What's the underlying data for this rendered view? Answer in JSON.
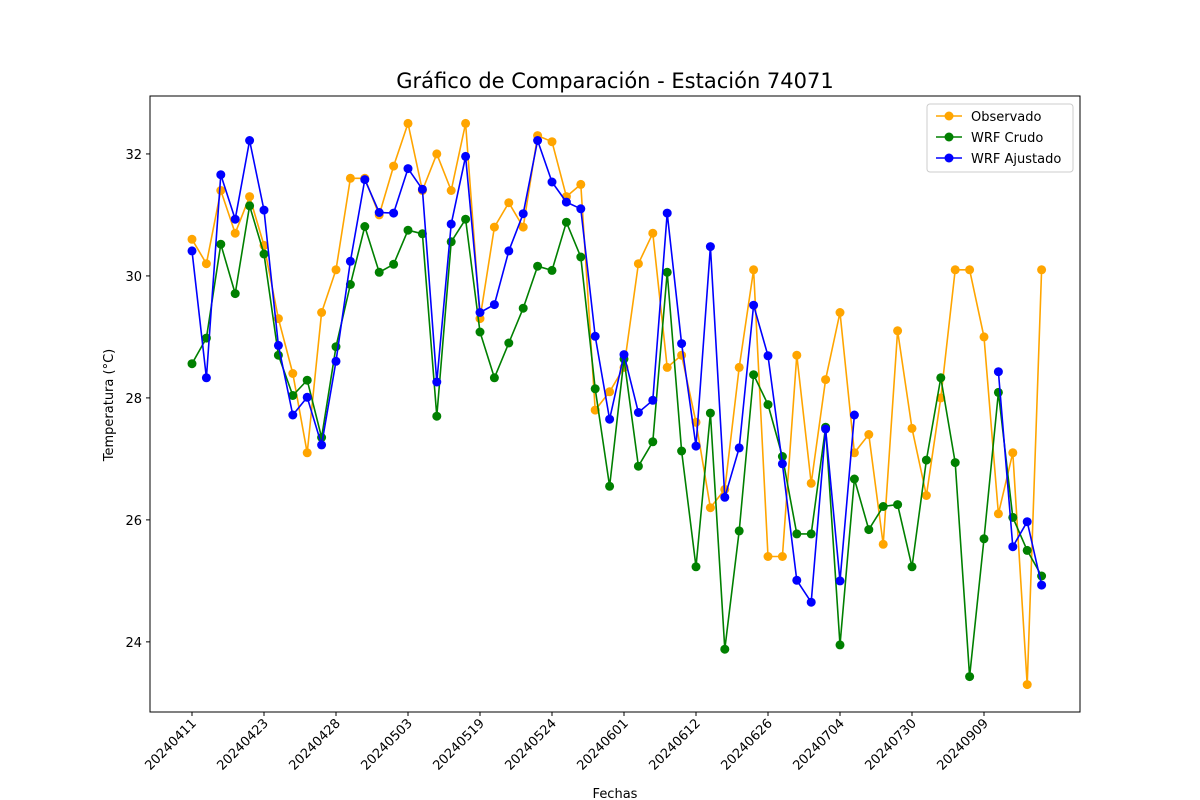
{
  "chart_data": {
    "type": "line",
    "title": "Gráfico de Comparación - Estación 74071",
    "xlabel": "Fechas",
    "ylabel": "Temperatura (°C)",
    "ylim": [
      22.85,
      32.95
    ],
    "yticks": [
      24,
      26,
      28,
      30,
      32
    ],
    "x_tick_labels": [
      "20240411",
      "20240423",
      "20240428",
      "20240503",
      "20240519",
      "20240524",
      "20240601",
      "20240612",
      "20240626",
      "20240704",
      "20240730",
      "20240909"
    ],
    "x_tick_every": 5,
    "x_tick_start": 0,
    "n_points": 60,
    "grid": false,
    "legend_position": "top-right",
    "series": [
      {
        "name": "Observado",
        "color": "#ffa500",
        "values": [
          30.6,
          30.2,
          31.4,
          30.7,
          31.3,
          30.5,
          29.3,
          28.4,
          27.1,
          29.4,
          30.1,
          31.6,
          31.6,
          31.0,
          31.8,
          32.5,
          31.4,
          32.0,
          31.4,
          32.5,
          29.3,
          30.8,
          31.2,
          30.8,
          32.3,
          32.2,
          31.3,
          31.5,
          27.8,
          28.1,
          28.5,
          30.2,
          30.7,
          28.5,
          28.7,
          27.6,
          26.2,
          26.5,
          28.5,
          30.1,
          25.4,
          25.4,
          28.7,
          26.6,
          28.3,
          29.4,
          27.1,
          27.4,
          25.6,
          29.1,
          27.5,
          26.4,
          28.0,
          30.1,
          30.1,
          29.0,
          26.1,
          27.1,
          23.3,
          30.1
        ]
      },
      {
        "name": "WRF Crudo",
        "color": "#008000",
        "values": [
          28.56,
          28.98,
          30.52,
          29.71,
          31.15,
          30.36,
          28.7,
          28.04,
          28.29,
          27.35,
          28.84,
          29.86,
          30.81,
          30.06,
          30.19,
          30.75,
          30.69,
          27.7,
          30.56,
          30.93,
          29.08,
          28.33,
          28.9,
          29.47,
          30.16,
          30.09,
          30.88,
          30.31,
          28.15,
          26.55,
          28.64,
          26.88,
          27.28,
          30.06,
          27.13,
          25.23,
          27.75,
          23.88,
          25.82,
          28.38,
          27.89,
          27.04,
          25.77,
          25.77,
          27.52,
          23.95,
          26.67,
          25.84,
          26.22,
          26.25,
          25.23,
          26.98,
          28.33,
          26.94,
          23.43,
          25.69,
          28.09,
          26.04,
          25.5,
          25.08
        ]
      },
      {
        "name": "WRF Ajustado",
        "color": "#0000ff",
        "values": [
          30.41,
          28.33,
          31.66,
          30.93,
          32.22,
          31.08,
          28.86,
          27.72,
          28.01,
          27.23,
          28.6,
          30.24,
          31.58,
          31.04,
          31.03,
          31.76,
          31.42,
          28.26,
          30.85,
          31.96,
          29.4,
          29.53,
          30.41,
          31.02,
          32.22,
          31.54,
          31.21,
          31.1,
          29.01,
          27.65,
          28.71,
          27.76,
          27.96,
          31.03,
          28.89,
          27.21,
          30.48,
          26.37,
          27.18,
          29.52,
          28.69,
          26.92,
          25.01,
          24.65,
          27.49,
          25.0,
          27.72,
          null,
          null,
          null,
          null,
          null,
          null,
          null,
          null,
          null,
          28.43,
          25.56,
          25.97,
          24.93
        ]
      }
    ]
  }
}
